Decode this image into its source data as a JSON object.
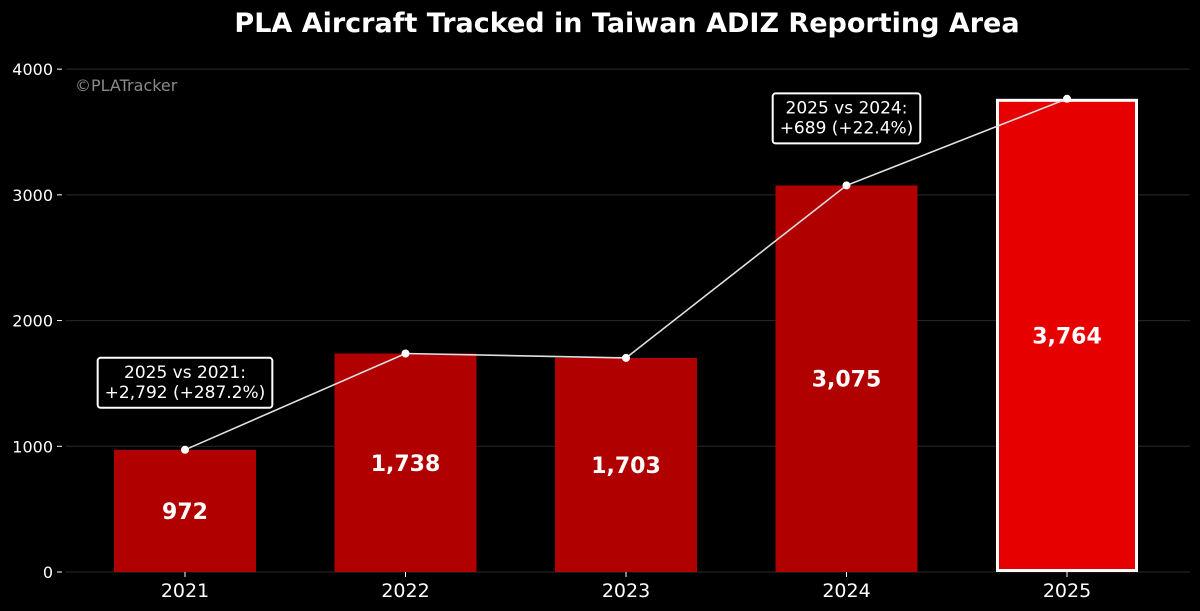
{
  "title": "PLA Aircraft Tracked in Taiwan ADIZ Reporting Area",
  "watermark": "©PLATracker",
  "colors": {
    "background": "#000000",
    "bar": "#b00000",
    "bar_highlight": "#e60000",
    "highlight_border": "#ffffff",
    "line": "#e0e0e0",
    "grid": "#2a2a2a",
    "text": "#ffffff"
  },
  "chart_data": {
    "type": "bar",
    "categories": [
      "2021",
      "2022",
      "2023",
      "2024",
      "2025"
    ],
    "values": [
      972,
      1738,
      1703,
      3075,
      3764
    ],
    "data_labels": [
      "972",
      "1,738",
      "1,703",
      "3,075",
      "3,764"
    ],
    "highlight_category": "2025",
    "overlay_line": true,
    "ylim": [
      0,
      4200
    ],
    "yticks": [
      0,
      1000,
      2000,
      3000,
      4000
    ],
    "ytick_labels": [
      "0",
      "1000",
      "2000",
      "3000",
      "4000"
    ],
    "grid": true,
    "annotations": [
      {
        "category": "2021",
        "lines": [
          "2025 vs 2021:",
          "+2,792 (+287.2%)"
        ]
      },
      {
        "category": "2024",
        "lines": [
          "2025 vs 2024:",
          "+689 (+22.4%)"
        ]
      }
    ]
  }
}
